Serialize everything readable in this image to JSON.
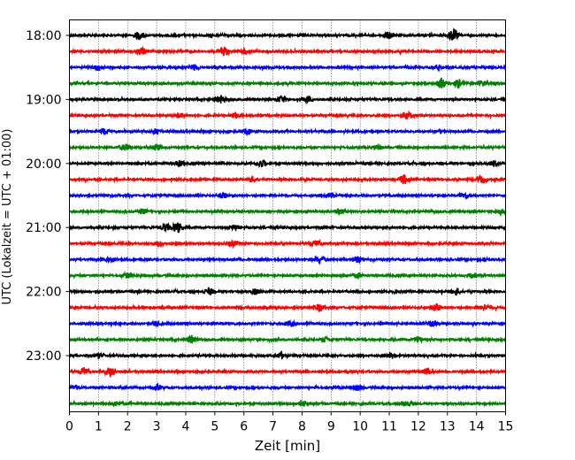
{
  "chart_data": {
    "type": "line",
    "xlabel": "Zeit  [min]",
    "ylabel": "UTC (Lokalzeit = UTC + 01:00)",
    "xlim": [
      0,
      15
    ],
    "x_ticks": [
      "0",
      "1",
      "2",
      "3",
      "4",
      "5",
      "6",
      "7",
      "8",
      "9",
      "10",
      "11",
      "12",
      "13",
      "14",
      "15"
    ],
    "y_ticks": [
      "18:00",
      "19:00",
      "20:00",
      "21:00",
      "22:00",
      "23:00"
    ],
    "y_tick_rows": [
      0,
      4,
      8,
      12,
      16,
      20
    ],
    "vertical_grid": "dotted",
    "rows": 24,
    "trace_colors": [
      "#000000",
      "#ff0000",
      "#0000ff",
      "#008000"
    ],
    "traces": [
      {
        "start": "18:00",
        "amplitude": 1.0,
        "bursts": [
          [
            2.4,
            2.2
          ],
          [
            11.0,
            2.0
          ],
          [
            13.2,
            3.5
          ]
        ]
      },
      {
        "start": "18:15",
        "amplitude": 1.0,
        "bursts": [
          [
            2.5,
            2.0
          ],
          [
            5.3,
            3.0
          ],
          [
            6.1,
            1.6
          ]
        ]
      },
      {
        "start": "18:30",
        "amplitude": 1.0,
        "bursts": [
          [
            1.0,
            1.5
          ],
          [
            4.3,
            1.5
          ],
          [
            12.6,
            1.5
          ]
        ]
      },
      {
        "start": "18:45",
        "amplitude": 1.0,
        "bursts": [
          [
            12.8,
            2.8
          ],
          [
            13.4,
            2.4
          ],
          [
            14.2,
            1.4
          ]
        ]
      },
      {
        "start": "19:00",
        "amplitude": 1.0,
        "bursts": [
          [
            5.2,
            2.2
          ],
          [
            7.3,
            2.0
          ],
          [
            8.2,
            1.6
          ]
        ]
      },
      {
        "start": "19:15",
        "amplitude": 1.0,
        "bursts": [
          [
            3.8,
            1.6
          ],
          [
            5.7,
            1.6
          ],
          [
            11.6,
            2.2
          ]
        ]
      },
      {
        "start": "19:30",
        "amplitude": 1.0,
        "bursts": [
          [
            1.2,
            1.5
          ],
          [
            3.0,
            1.5
          ],
          [
            6.1,
            1.5
          ]
        ]
      },
      {
        "start": "19:45",
        "amplitude": 1.0,
        "bursts": [
          [
            1.9,
            1.8
          ],
          [
            3.0,
            1.8
          ],
          [
            10.6,
            1.5
          ]
        ]
      },
      {
        "start": "20:00",
        "amplitude": 1.0,
        "bursts": [
          [
            3.8,
            1.6
          ],
          [
            6.6,
            2.0
          ],
          [
            14.6,
            1.6
          ]
        ]
      },
      {
        "start": "20:15",
        "amplitude": 1.0,
        "bursts": [
          [
            6.3,
            1.6
          ],
          [
            11.5,
            2.6
          ],
          [
            14.2,
            1.8
          ]
        ]
      },
      {
        "start": "20:30",
        "amplitude": 1.0,
        "bursts": [
          [
            5.3,
            1.5
          ],
          [
            9.0,
            1.5
          ],
          [
            13.6,
            1.5
          ]
        ]
      },
      {
        "start": "20:45",
        "amplitude": 1.0,
        "bursts": [
          [
            2.5,
            1.4
          ],
          [
            9.3,
            1.4
          ],
          [
            14.8,
            1.4
          ]
        ]
      },
      {
        "start": "21:00",
        "amplitude": 1.0,
        "bursts": [
          [
            3.3,
            2.2
          ],
          [
            3.7,
            3.0
          ],
          [
            5.7,
            1.5
          ]
        ]
      },
      {
        "start": "21:15",
        "amplitude": 1.0,
        "bursts": [
          [
            3.1,
            1.6
          ],
          [
            5.6,
            1.6
          ],
          [
            8.5,
            1.8
          ]
        ]
      },
      {
        "start": "21:30",
        "amplitude": 1.0,
        "bursts": [
          [
            1.4,
            1.5
          ],
          [
            8.6,
            1.8
          ],
          [
            9.9,
            1.8
          ]
        ]
      },
      {
        "start": "21:45",
        "amplitude": 1.0,
        "bursts": [
          [
            2.0,
            1.4
          ],
          [
            9.9,
            1.4
          ],
          [
            13.9,
            1.4
          ]
        ]
      },
      {
        "start": "22:00",
        "amplitude": 1.0,
        "bursts": [
          [
            4.8,
            2.0
          ],
          [
            6.4,
            1.6
          ],
          [
            13.3,
            2.0
          ]
        ]
      },
      {
        "start": "22:15",
        "amplitude": 1.0,
        "bursts": [
          [
            8.6,
            2.0
          ],
          [
            12.6,
            2.2
          ],
          [
            14.3,
            1.6
          ]
        ]
      },
      {
        "start": "22:30",
        "amplitude": 1.0,
        "bursts": [
          [
            3.0,
            1.5
          ],
          [
            7.6,
            1.6
          ],
          [
            12.5,
            1.6
          ]
        ]
      },
      {
        "start": "22:45",
        "amplitude": 1.0,
        "bursts": [
          [
            4.2,
            2.2
          ],
          [
            8.8,
            1.5
          ],
          [
            12.0,
            1.5
          ]
        ]
      },
      {
        "start": "23:00",
        "amplitude": 1.0,
        "bursts": [
          [
            1.0,
            1.4
          ],
          [
            7.3,
            1.6
          ],
          [
            11.1,
            1.4
          ]
        ]
      },
      {
        "start": "23:15",
        "amplitude": 1.0,
        "bursts": [
          [
            0.5,
            2.2
          ],
          [
            1.4,
            2.8
          ],
          [
            12.3,
            1.6
          ]
        ]
      },
      {
        "start": "23:30",
        "amplitude": 1.0,
        "bursts": [
          [
            0.2,
            1.6
          ],
          [
            3.0,
            1.6
          ],
          [
            9.9,
            1.6
          ]
        ]
      },
      {
        "start": "23:45",
        "amplitude": 1.0,
        "bursts": [
          [
            1.6,
            1.4
          ],
          [
            8.0,
            1.6
          ],
          [
            11.6,
            1.8
          ]
        ]
      }
    ]
  }
}
